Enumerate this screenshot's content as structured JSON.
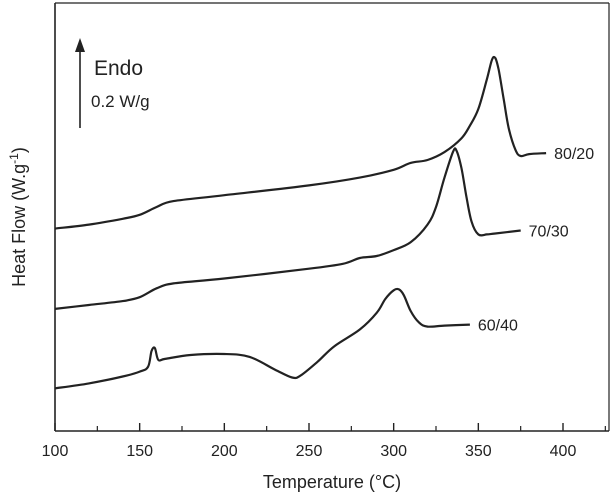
{
  "chart_data": {
    "type": "line",
    "title": "",
    "xlabel": "Temperature (°C)",
    "ylabel_main": "Heat Flow (W.g",
    "ylabel_sup": "-1",
    "ylabel_tail": ")",
    "xlim": [
      100,
      430
    ],
    "xticks": [
      100,
      150,
      200,
      250,
      300,
      350,
      400
    ],
    "y_tick_labels": false,
    "grid": false,
    "annotation": {
      "direction_label": "Endo",
      "scale_label": "0.2 W/g",
      "scale_value_W_per_g": 0.2
    },
    "series": [
      {
        "name": "80/20",
        "points": [
          [
            100,
            -1.72
          ],
          [
            120,
            -1.68
          ],
          [
            140,
            -1.62
          ],
          [
            150,
            -1.58
          ],
          [
            160,
            -1.5
          ],
          [
            170,
            -1.44
          ],
          [
            200,
            -1.38
          ],
          [
            250,
            -1.28
          ],
          [
            280,
            -1.2
          ],
          [
            300,
            -1.12
          ],
          [
            310,
            -1.05
          ],
          [
            320,
            -1.02
          ],
          [
            330,
            -0.94
          ],
          [
            340,
            -0.8
          ],
          [
            345,
            -0.67
          ],
          [
            350,
            -0.5
          ],
          [
            355,
            -0.2
          ],
          [
            358,
            0.0
          ],
          [
            360,
            0.02
          ],
          [
            362,
            -0.1
          ],
          [
            365,
            -0.4
          ],
          [
            368,
            -0.7
          ],
          [
            372,
            -0.92
          ],
          [
            375,
            -0.98
          ],
          [
            380,
            -0.96
          ],
          [
            390,
            -0.95
          ]
        ]
      },
      {
        "name": "70/30",
        "points": [
          [
            100,
            -2.54
          ],
          [
            120,
            -2.5
          ],
          [
            140,
            -2.46
          ],
          [
            150,
            -2.42
          ],
          [
            160,
            -2.33
          ],
          [
            170,
            -2.28
          ],
          [
            200,
            -2.23
          ],
          [
            250,
            -2.13
          ],
          [
            270,
            -2.08
          ],
          [
            280,
            -2.02
          ],
          [
            290,
            -2.0
          ],
          [
            300,
            -1.94
          ],
          [
            310,
            -1.86
          ],
          [
            320,
            -1.68
          ],
          [
            325,
            -1.5
          ],
          [
            330,
            -1.2
          ],
          [
            335,
            -0.94
          ],
          [
            337,
            -0.92
          ],
          [
            340,
            -1.1
          ],
          [
            343,
            -1.4
          ],
          [
            346,
            -1.65
          ],
          [
            350,
            -1.78
          ],
          [
            355,
            -1.78
          ],
          [
            360,
            -1.77
          ],
          [
            375,
            -1.74
          ]
        ]
      },
      {
        "name": "60/40",
        "points": [
          [
            100,
            -3.35
          ],
          [
            120,
            -3.3
          ],
          [
            140,
            -3.23
          ],
          [
            150,
            -3.18
          ],
          [
            155,
            -3.13
          ],
          [
            157,
            -2.97
          ],
          [
            159,
            -2.94
          ],
          [
            161,
            -3.06
          ],
          [
            165,
            -3.05
          ],
          [
            180,
            -3.01
          ],
          [
            200,
            -3.0
          ],
          [
            215,
            -3.03
          ],
          [
            230,
            -3.16
          ],
          [
            240,
            -3.24
          ],
          [
            245,
            -3.22
          ],
          [
            255,
            -3.08
          ],
          [
            265,
            -2.92
          ],
          [
            280,
            -2.75
          ],
          [
            290,
            -2.58
          ],
          [
            295,
            -2.44
          ],
          [
            300,
            -2.35
          ],
          [
            303,
            -2.34
          ],
          [
            306,
            -2.4
          ],
          [
            310,
            -2.56
          ],
          [
            315,
            -2.68
          ],
          [
            320,
            -2.72
          ],
          [
            330,
            -2.71
          ],
          [
            345,
            -2.7
          ]
        ]
      }
    ]
  }
}
